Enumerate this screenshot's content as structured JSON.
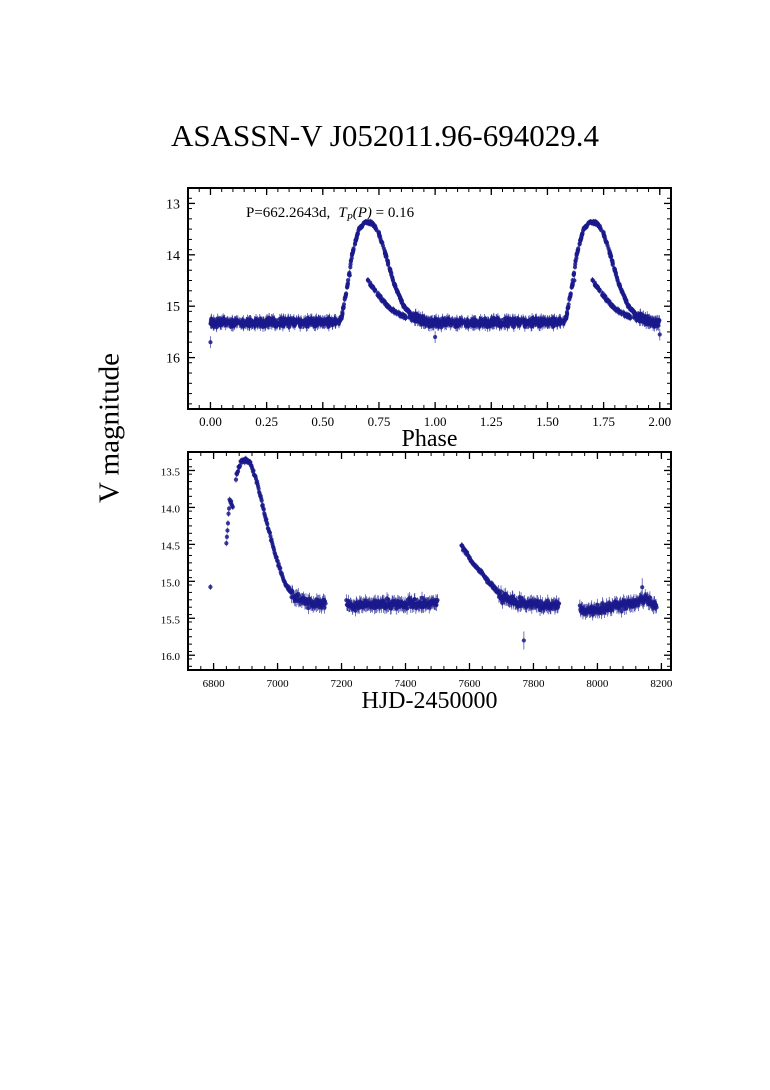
{
  "title": "ASASSN-V J052011.96-694029.4",
  "shared_ylabel": "V magnitude",
  "accent_color": "#1a1a8c",
  "chart_data": [
    {
      "type": "scatter",
      "name": "phase-folded",
      "annotation": "P=662.2643d,",
      "annotation_math_lhs": "T",
      "annotation_math_sub": "P",
      "annotation_math_arg": "(P)",
      "annotation_math_rhs": " = 0.16",
      "xlabel": "Phase",
      "xlim": [
        -0.1,
        2.05
      ],
      "ylim": [
        17.0,
        12.7
      ],
      "xticks": [
        "0.00",
        "0.25",
        "0.50",
        "0.75",
        "1.00",
        "1.25",
        "1.50",
        "1.75",
        "2.00"
      ],
      "yticks": [
        "13",
        "14",
        "15",
        "16"
      ],
      "curve_base_mag": 15.32,
      "curve_peak_mag": 13.35,
      "curve_knots": [
        [
          0.0,
          15.32
        ],
        [
          0.58,
          15.3
        ],
        [
          0.61,
          14.6
        ],
        [
          0.63,
          14.0
        ],
        [
          0.66,
          13.5
        ],
        [
          0.69,
          13.36
        ],
        [
          0.72,
          13.38
        ],
        [
          0.75,
          13.6
        ],
        [
          0.78,
          14.0
        ],
        [
          0.82,
          14.6
        ],
        [
          0.86,
          15.0
        ],
        [
          0.9,
          15.2
        ],
        [
          0.95,
          15.3
        ],
        [
          1.0,
          15.32
        ]
      ],
      "secondary_knots": [
        [
          0.7,
          14.5
        ],
        [
          0.75,
          14.8
        ],
        [
          0.8,
          15.05
        ],
        [
          0.86,
          15.2
        ],
        [
          0.92,
          15.28
        ]
      ],
      "grid": false
    },
    {
      "type": "scatter",
      "name": "time-series",
      "xlabel": "HJD-2450000",
      "xlim": [
        6720,
        8230
      ],
      "ylim": [
        16.2,
        13.25
      ],
      "xticks": [
        "6800",
        "7000",
        "7200",
        "7400",
        "7600",
        "7800",
        "8000",
        "8200"
      ],
      "yticks": [
        "13.5",
        "14.0",
        "14.5",
        "15.0",
        "15.5",
        "16.0"
      ],
      "segments": [
        {
          "x": [
            6790,
            6790
          ],
          "knots": [
            [
              6790,
              15.05
            ]
          ]
        },
        {
          "x": [
            6840,
            6860
          ],
          "knots": [
            [
              6840,
              14.5
            ],
            [
              6850,
              13.9
            ],
            [
              6860,
              14.0
            ]
          ]
        },
        {
          "x": [
            6870,
            7150
          ],
          "knots": [
            [
              6870,
              13.6
            ],
            [
              6885,
              13.38
            ],
            [
              6900,
              13.35
            ],
            [
              6915,
              13.4
            ],
            [
              6935,
              13.65
            ],
            [
              6960,
              14.1
            ],
            [
              6990,
              14.6
            ],
            [
              7020,
              15.0
            ],
            [
              7050,
              15.2
            ],
            [
              7100,
              15.3
            ],
            [
              7150,
              15.3
            ]
          ]
        },
        {
          "x": [
            7215,
            7500
          ],
          "knots": [
            [
              7215,
              15.32
            ],
            [
              7500,
              15.3
            ]
          ]
        },
        {
          "x": [
            7575,
            7880
          ],
          "knots": [
            [
              7575,
              14.52
            ],
            [
              7610,
              14.75
            ],
            [
              7650,
              14.95
            ],
            [
              7700,
              15.2
            ],
            [
              7750,
              15.3
            ],
            [
              7880,
              15.33
            ]
          ]
        },
        {
          "x": [
            7945,
            8185
          ],
          "knots": [
            [
              7945,
              15.4
            ],
            [
              8060,
              15.35
            ],
            [
              8150,
              15.25
            ],
            [
              8185,
              15.35
            ]
          ]
        }
      ],
      "outliers": [
        [
          7770,
          15.8
        ],
        [
          8140,
          15.08
        ]
      ],
      "grid": false
    }
  ]
}
